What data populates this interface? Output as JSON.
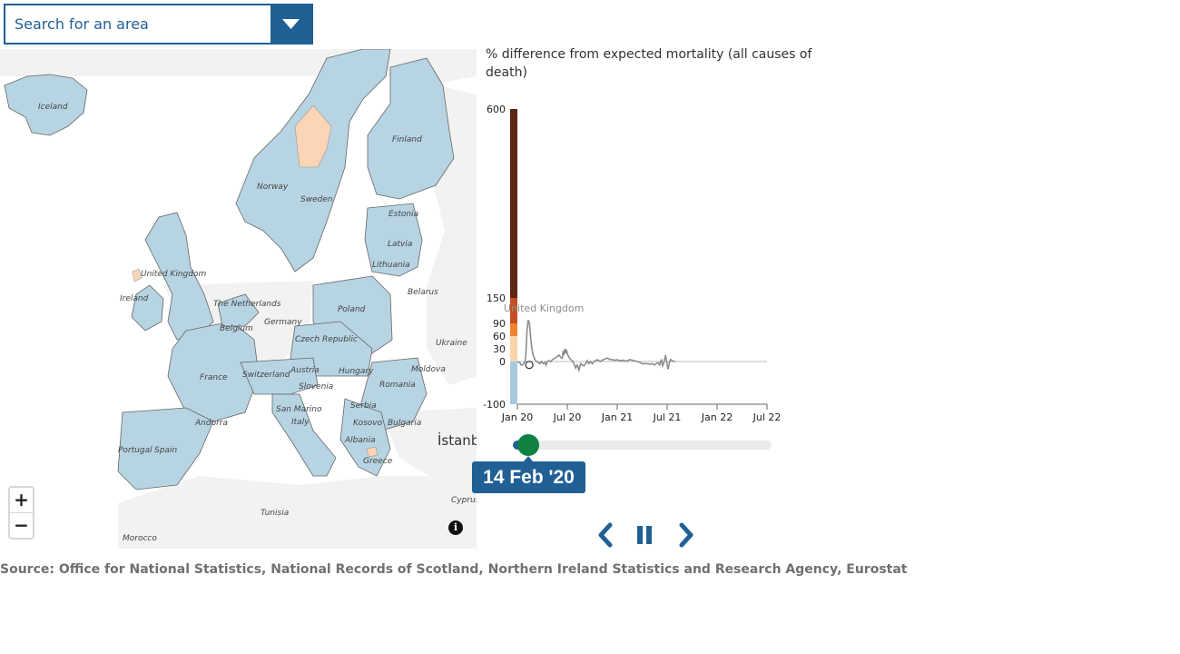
{
  "search": {
    "placeholder": "Search for an area",
    "toggle_icon": "chevron-down-icon"
  },
  "map": {
    "labels": {
      "iceland": "Iceland",
      "finland": "Finland",
      "norway": "Norway",
      "sweden": "Sweden",
      "estonia": "Estonia",
      "latvia": "Latvia",
      "lithuania": "Lithuania",
      "united_kingdom": "United Kingdom",
      "ireland": "Ireland",
      "netherlands": "The Netherlands",
      "belarus": "Belarus",
      "poland": "Poland",
      "germany": "Germany",
      "belgium": "Belgium",
      "czech_republic": "Czech Republic",
      "ukraine": "Ukraine",
      "france": "France",
      "switzerland": "Switzerland",
      "austria": "Austria",
      "hungary": "Hungary",
      "moldova": "Moldova",
      "slovenia": "Slovenia",
      "romania": "Romania",
      "san_marino": "San Marino",
      "serbia": "Serbia",
      "andorra": "Andorra",
      "italy": "Italy",
      "kosovo": "Kosovo",
      "bulgaria": "Bulgaria",
      "albania": "Albania",
      "portugal": "Portugal",
      "spain": "Spain",
      "greece": "Greece",
      "tunisia": "Tunisia",
      "cyprus": "Cyprus",
      "morocco": "Morocco",
      "istanbul": "İstanbu"
    },
    "zoom_in": "+",
    "zoom_out": "−",
    "info_icon": "info-icon",
    "colors": {
      "region_fill": "#b7d4e3",
      "highlight_fill": "#fbd5b5",
      "land": "#f2f2f0",
      "sea": "#ffffff"
    }
  },
  "chart": {
    "title": "% difference from expected mortality (all causes of death)"
  },
  "chart_data": {
    "type": "line",
    "series_label": "United Kingdom",
    "y_ticks": [
      "600",
      "150",
      "90",
      "60",
      "30",
      "0",
      "-100"
    ],
    "x_ticks": [
      "Jan 20",
      "Jul 20",
      "Jan 21",
      "Jul 21",
      "Jan 22",
      "Jul 22"
    ],
    "legend_bands": [
      {
        "from": 150,
        "to": 600,
        "color": "#5a2813"
      },
      {
        "from": 90,
        "to": 150,
        "color": "#c54e22"
      },
      {
        "from": 60,
        "to": 90,
        "color": "#f0842e"
      },
      {
        "from": 30,
        "to": 60,
        "color": "#fbd5a9"
      },
      {
        "from": 0,
        "to": 30,
        "color": "#fbd5a9"
      },
      {
        "from": -100,
        "to": 0,
        "color": "#a6cbe0"
      }
    ],
    "series": [
      {
        "name": "United Kingdom",
        "color": "#8c8c8c",
        "points": [
          [
            0.0,
            0
          ],
          [
            0.15,
            -2
          ],
          [
            0.3,
            -3
          ],
          [
            0.45,
            -8
          ],
          [
            0.6,
            -8
          ],
          [
            0.75,
            -5
          ],
          [
            0.9,
            0
          ],
          [
            1.0,
            10
          ],
          [
            1.15,
            70
          ],
          [
            1.3,
            98
          ],
          [
            1.45,
            90
          ],
          [
            1.6,
            55
          ],
          [
            1.75,
            30
          ],
          [
            1.9,
            15
          ],
          [
            2.1,
            5
          ],
          [
            2.3,
            0
          ],
          [
            2.5,
            -2
          ],
          [
            2.7,
            -5
          ],
          [
            2.9,
            0
          ],
          [
            3.1,
            -5
          ],
          [
            3.3,
            -2
          ],
          [
            3.45,
            -8
          ],
          [
            3.6,
            0
          ],
          [
            3.8,
            2
          ],
          [
            4.0,
            0
          ],
          [
            4.2,
            4
          ],
          [
            4.5,
            8
          ],
          [
            4.8,
            12
          ],
          [
            5.0,
            15
          ],
          [
            5.2,
            10
          ],
          [
            5.4,
            8
          ],
          [
            5.5,
            25
          ],
          [
            5.6,
            15
          ],
          [
            5.7,
            30
          ],
          [
            5.8,
            20
          ],
          [
            5.9,
            28
          ],
          [
            6.0,
            18
          ],
          [
            6.2,
            10
          ],
          [
            6.4,
            5
          ],
          [
            6.6,
            2
          ],
          [
            6.8,
            -5
          ],
          [
            7.0,
            -15
          ],
          [
            7.2,
            -8
          ],
          [
            7.4,
            -20
          ],
          [
            7.6,
            -5
          ],
          [
            7.8,
            -8
          ],
          [
            8.0,
            -10
          ],
          [
            8.2,
            -5
          ],
          [
            8.4,
            2
          ],
          [
            8.6,
            -5
          ],
          [
            8.8,
            0
          ],
          [
            9.0,
            -5
          ],
          [
            9.2,
            0
          ],
          [
            9.4,
            2
          ],
          [
            9.6,
            4
          ],
          [
            9.8,
            2
          ],
          [
            10.0,
            0
          ],
          [
            10.2,
            3
          ],
          [
            10.5,
            6
          ],
          [
            10.8,
            8
          ],
          [
            11.1,
            5
          ],
          [
            11.4,
            4
          ],
          [
            11.7,
            3
          ],
          [
            12.0,
            4
          ],
          [
            12.3,
            2
          ],
          [
            12.6,
            3
          ],
          [
            12.9,
            2
          ],
          [
            13.2,
            1
          ],
          [
            13.5,
            5
          ],
          [
            13.8,
            3
          ],
          [
            14.1,
            2
          ],
          [
            14.4,
            0
          ],
          [
            14.7,
            -2
          ],
          [
            15.0,
            -5
          ],
          [
            15.3,
            -5
          ],
          [
            15.6,
            -5
          ],
          [
            15.9,
            -6
          ],
          [
            16.2,
            -5
          ],
          [
            16.5,
            -8
          ],
          [
            16.7,
            -4
          ],
          [
            16.9,
            -3
          ],
          [
            17.1,
            -8
          ],
          [
            17.3,
            5
          ],
          [
            17.45,
            -10
          ],
          [
            17.6,
            -3
          ],
          [
            17.8,
            15
          ],
          [
            17.95,
            0
          ],
          [
            18.1,
            -18
          ],
          [
            18.25,
            -5
          ],
          [
            18.4,
            5
          ],
          [
            18.6,
            2
          ],
          [
            18.8,
            0
          ],
          [
            19.0,
            0
          ]
        ],
        "x_unit": "months since Jan 2020"
      }
    ],
    "current_marker": {
      "x": 0.45,
      "y": -8
    }
  },
  "slider": {
    "current_label": "14 Feb '20",
    "progress": 0.05
  },
  "playback": {
    "prev_icon": "chevron-left-icon",
    "pause_icon": "pause-icon",
    "next_icon": "chevron-right-icon"
  },
  "footer": {
    "source": "Source: Office for National Statistics, National Records of Scotland, Northern Ireland Statistics and Research Agency, Eurostat"
  }
}
